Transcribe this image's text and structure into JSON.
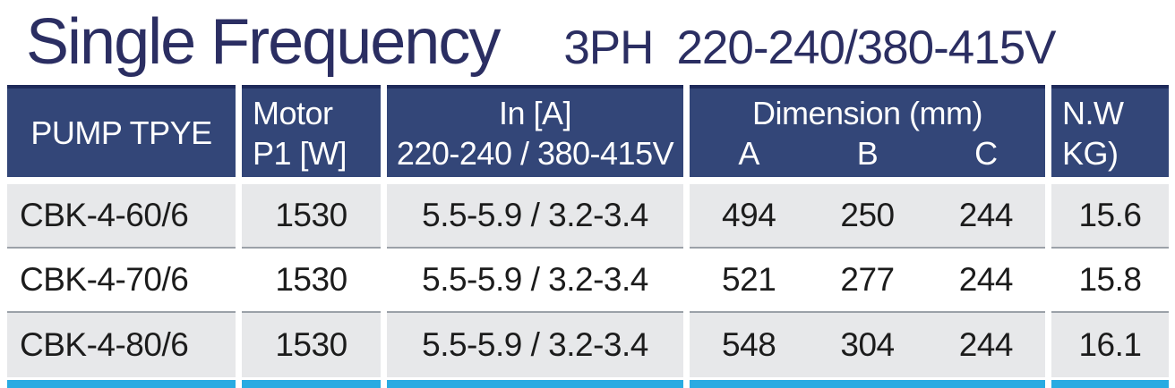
{
  "title": "Single Frequency",
  "subtitle": {
    "phase": "3PH",
    "voltage": "220-240/380-415V"
  },
  "colors": {
    "header_bg": "#334678",
    "header_top_edge": "#1e2a5a",
    "title_text": "#2b2e62",
    "row_alt_bg": "#e7e8ea",
    "rule_gray": "#9ba1a8",
    "footer_bar": "#29abe2",
    "cell_text": "#1c1c1c"
  },
  "table": {
    "headers": {
      "pump_type": "PUMP TPYE",
      "motor_line1": "Motor",
      "motor_line2": "P1 [W]",
      "current_line1": "In [A]",
      "current_line2": "220-240 / 380-415V",
      "dimension": "Dimension (mm)",
      "dim_a": "A",
      "dim_b": "B",
      "dim_c": "C",
      "nw_line1": "N.W",
      "nw_line2": "KG)"
    },
    "rows": [
      {
        "pump": "CBK-4-60/6",
        "motor": "1530",
        "in_a": "5.5-5.9 / 3.2-3.4",
        "a": "494",
        "b": "250",
        "c": "244",
        "nw": "15.6"
      },
      {
        "pump": "CBK-4-70/6",
        "motor": "1530",
        "in_a": "5.5-5.9 / 3.2-3.4",
        "a": "521",
        "b": "277",
        "c": "244",
        "nw": "15.8"
      },
      {
        "pump": "CBK-4-80/6",
        "motor": "1530",
        "in_a": "5.5-5.9 / 3.2-3.4",
        "a": "548",
        "b": "304",
        "c": "244",
        "nw": "16.1"
      }
    ]
  }
}
